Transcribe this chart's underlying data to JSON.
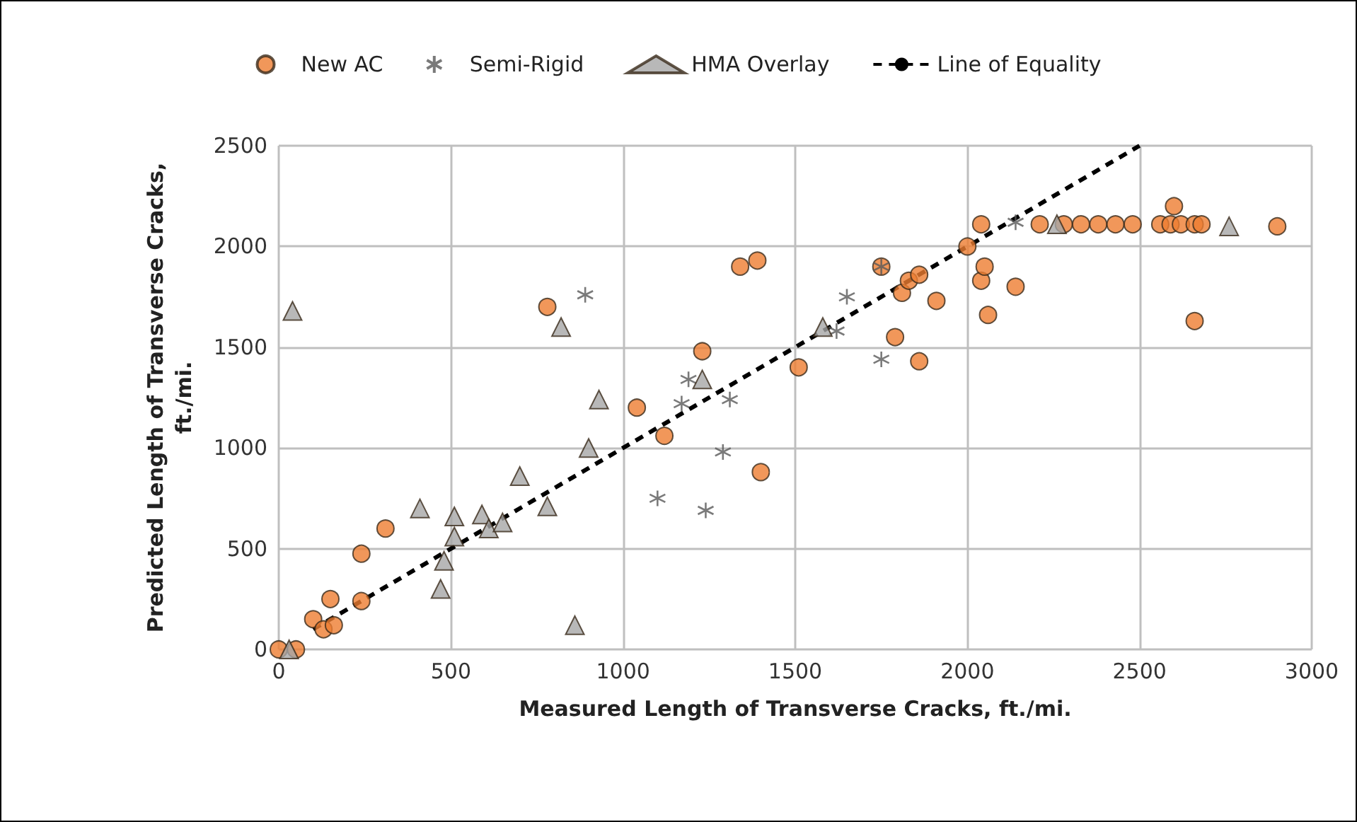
{
  "chart_data": {
    "type": "scatter",
    "xlabel": "Measured Length of Transverse Cracks, ft./mi.",
    "ylabel": "Predicted Length of Transverse Cracks,\nft./mi.",
    "xlim": [
      0,
      3000
    ],
    "xticks": [
      0,
      500,
      1000,
      1500,
      2000,
      2500,
      3000
    ],
    "ylim": [
      0,
      2500
    ],
    "yticks": [
      0,
      500,
      1000,
      1500,
      2000,
      2500
    ],
    "grid": true,
    "legend": "top",
    "series": [
      {
        "name": "New AC",
        "color": "#ed7d31",
        "marker": "circle",
        "x": [
          0,
          50,
          100,
          130,
          150,
          160,
          240,
          240,
          310,
          780,
          1040,
          1120,
          1230,
          1340,
          1390,
          1400,
          1510,
          1750,
          1790,
          1810,
          1830,
          1860,
          1860,
          1910,
          2000,
          2040,
          2040,
          2050,
          2060,
          2140,
          2210,
          2280,
          2330,
          2380,
          2430,
          2480,
          2560,
          2590,
          2600,
          2620,
          2660,
          2680,
          2660,
          2900
        ],
        "values": [
          0,
          0,
          150,
          100,
          250,
          120,
          475,
          240,
          600,
          1700,
          1200,
          1060,
          1480,
          1900,
          1930,
          880,
          1400,
          1900,
          1550,
          1770,
          1830,
          1860,
          1430,
          1730,
          2000,
          2110,
          1830,
          1900,
          1660,
          1800,
          2110,
          2110,
          2110,
          2110,
          2110,
          2110,
          2110,
          2110,
          2200,
          2110,
          2110,
          2110,
          1630,
          2100
        ]
      },
      {
        "name": "Semi-Rigid",
        "color": "#595959",
        "marker": "cross",
        "x": [
          890,
          1100,
          1170,
          1190,
          1240,
          1290,
          1310,
          1620,
          1650,
          1750,
          1750,
          2140
        ],
        "values": [
          1760,
          750,
          1220,
          1340,
          690,
          980,
          1240,
          1580,
          1750,
          1440,
          1900,
          2120
        ]
      },
      {
        "name": "HMA Overlay",
        "color": "#a6a6a6",
        "marker": "triangle",
        "x": [
          30,
          40,
          410,
          470,
          480,
          510,
          510,
          590,
          610,
          650,
          700,
          780,
          820,
          860,
          900,
          930,
          1230,
          1580,
          2260,
          2760
        ],
        "values": [
          0,
          1680,
          700,
          300,
          440,
          560,
          660,
          670,
          600,
          630,
          860,
          710,
          1600,
          120,
          1000,
          1240,
          1340,
          1600,
          2110,
          2100
        ]
      },
      {
        "name": "Line of Equality",
        "type": "line",
        "color": "#000000",
        "line_style": "dashed",
        "marker": "none",
        "x": [
          100,
          2500
        ],
        "values": [
          100,
          2500
        ]
      }
    ]
  }
}
